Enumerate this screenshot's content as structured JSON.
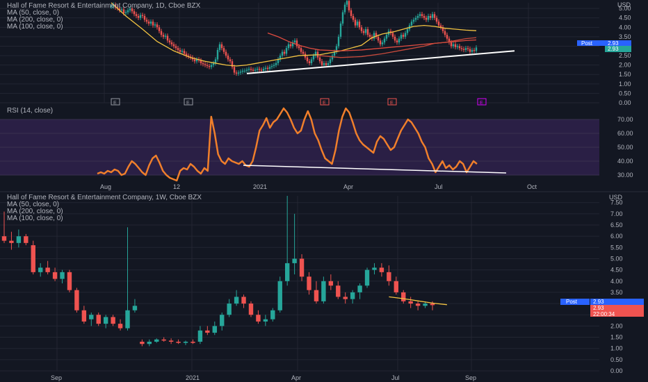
{
  "colors": {
    "background": "#131722",
    "grid": "#232632",
    "text": "#b2b5be",
    "candle_up": "#26a69a",
    "candle_down": "#ef5350",
    "ma50": "#f5c542",
    "ma200": "#e04b3f",
    "ma100": "#c94a3c",
    "rsi_line": "#f07f2b",
    "rsi_band": "#2a1f45",
    "trendline": "#ffffff",
    "post_badge": "#2962ff",
    "last_price_badge": "#26a69a",
    "last_price_badge_down": "#ef5350"
  },
  "daily_panel": {
    "legend": [
      "Hall of Fame Resort & Entertainment Company, 1D, Cboe BZX",
      "MA (50, close, 0)",
      "MA (200, close, 0)",
      "MA (100, close, 0)"
    ],
    "currency": "USD",
    "post_label": "Post",
    "price_labels": [
      "2.93",
      "2.93"
    ],
    "event_markers": [
      "E",
      "E",
      "E",
      "E",
      "E"
    ]
  },
  "rsi_panel": {
    "legend": "RSI (14, close)",
    "x_labels": [
      "Aug",
      "12",
      "2021",
      "Apr",
      "Jul",
      "Oct"
    ]
  },
  "weekly_panel": {
    "legend": [
      "Hall of Fame Resort & Entertainment Company, 1W, Cboe BZX",
      "MA (50, close, 0)",
      "MA (200, close, 0)",
      "MA (100, close, 0)"
    ],
    "currency": "USD",
    "post_label": "Post",
    "price_labels": [
      "2.93",
      "2.93",
      "22:00:34"
    ],
    "x_labels": [
      "Sep",
      "2021",
      "Apr",
      "Jul",
      "Sep"
    ]
  },
  "chart_data": [
    {
      "type": "candlestick",
      "timeframe": "1D",
      "y_ticks": [
        "5.00",
        "4.50",
        "4.00",
        "3.50",
        "3.00",
        "2.50",
        "2.00",
        "1.50",
        "1.00",
        "0.50",
        "0.00"
      ],
      "ylim": [
        0,
        5.3
      ],
      "closes": [
        5.1,
        5.2,
        5.05,
        5.0,
        4.9,
        4.95,
        4.75,
        4.8,
        4.9,
        5.0,
        4.85,
        4.7,
        4.6,
        4.5,
        4.65,
        4.6,
        4.4,
        4.3,
        4.2,
        4.3,
        4.1,
        4.15,
        4.0,
        3.8,
        3.6,
        3.5,
        3.55,
        3.3,
        3.2,
        3.1,
        3.0,
        2.9,
        2.8,
        2.7,
        2.75,
        2.6,
        2.5,
        2.45,
        2.4,
        2.3,
        2.2,
        2.3,
        2.25,
        2.1,
        2.05,
        2.0,
        1.95,
        1.9,
        2.0,
        2.1,
        2.3,
        2.8,
        3.1,
        2.9,
        2.7,
        2.5,
        2.3,
        2.2,
        1.9,
        1.6,
        1.55,
        1.6,
        1.65,
        1.7,
        1.7,
        1.75,
        1.8,
        1.75,
        1.7,
        1.75,
        1.8,
        1.75,
        1.7,
        1.8,
        1.85,
        1.8,
        1.9,
        1.95,
        2.0,
        2.1,
        2.3,
        2.5,
        2.7,
        2.6,
        2.9,
        3.1,
        3.0,
        3.2,
        3.3,
        3.0,
        2.9,
        2.7,
        2.6,
        2.4,
        2.2,
        2.1,
        2.3,
        2.5,
        2.7,
        2.4,
        2.2,
        2.0,
        2.1,
        2.0,
        2.1,
        2.3,
        2.5,
        2.7,
        3.0,
        3.5,
        4.2,
        4.8,
        5.2,
        5.4,
        4.9,
        4.6,
        4.4,
        4.1,
        4.3,
        4.0,
        3.8,
        3.7,
        3.9,
        3.6,
        3.5,
        3.4,
        3.7,
        3.5,
        3.3,
        3.1,
        3.2,
        3.4,
        3.6,
        3.8,
        3.7,
        3.5,
        3.3,
        3.2,
        3.4,
        3.6,
        3.5,
        3.7,
        3.9,
        4.1,
        4.3,
        4.4,
        4.5,
        4.6,
        4.7,
        4.6,
        4.5,
        4.4,
        4.6,
        4.5,
        4.7,
        4.5,
        4.3,
        4.1,
        4.0,
        3.8,
        3.6,
        3.4,
        3.2,
        3.0,
        3.1,
        2.95,
        3.0,
        2.9,
        2.85,
        2.8,
        2.9,
        2.85,
        2.7,
        2.8,
        2.75,
        2.93
      ],
      "series": [
        {
          "name": "MA (50, close, 0)",
          "points": [
            [
              0.3,
              5.3
            ],
            [
              0.37,
              4.6
            ],
            [
              0.45,
              3.9
            ],
            [
              0.52,
              3.25
            ],
            [
              0.6,
              2.75
            ],
            [
              0.68,
              2.4
            ],
            [
              0.75,
              2.2
            ],
            [
              0.8,
              2.1
            ],
            [
              0.85,
              2.0
            ],
            [
              0.9,
              1.95
            ],
            [
              0.95,
              2.0
            ],
            [
              1.0,
              2.1
            ],
            [
              1.05,
              2.2
            ],
            [
              1.1,
              2.3
            ],
            [
              1.15,
              2.4
            ],
            [
              1.2,
              2.5
            ],
            [
              1.3,
              2.55
            ],
            [
              1.4,
              2.75
            ],
            [
              1.5,
              3.05
            ],
            [
              1.55,
              3.45
            ],
            [
              1.6,
              3.65
            ],
            [
              1.65,
              3.75
            ],
            [
              1.7,
              3.9
            ],
            [
              1.75,
              4.05
            ],
            [
              1.8,
              4.1
            ],
            [
              1.85,
              4.05
            ],
            [
              1.9,
              3.95
            ],
            [
              1.95,
              3.9
            ],
            [
              2.0,
              3.85
            ],
            [
              2.05,
              3.82
            ]
          ]
        },
        {
          "name": "MA (200, close, 0)",
          "points": [
            [
              1.05,
              3.7
            ],
            [
              1.1,
              3.5
            ],
            [
              1.15,
              3.25
            ],
            [
              1.2,
              3.05
            ],
            [
              1.25,
              2.9
            ],
            [
              1.3,
              2.8
            ],
            [
              1.4,
              2.75
            ],
            [
              1.5,
              2.8
            ],
            [
              1.6,
              2.9
            ],
            [
              1.7,
              3.0
            ],
            [
              1.8,
              3.1
            ],
            [
              1.9,
              3.2
            ],
            [
              2.0,
              3.3
            ],
            [
              2.05,
              3.33
            ]
          ]
        },
        {
          "name": "MA (100, close, 0)",
          "points": [
            [
              1.3,
              2.5
            ],
            [
              1.4,
              2.4
            ],
            [
              1.5,
              2.45
            ],
            [
              1.6,
              2.6
            ],
            [
              1.7,
              2.8
            ],
            [
              1.8,
              3.0
            ],
            [
              1.85,
              3.15
            ],
            [
              1.9,
              3.2
            ],
            [
              1.95,
              3.3
            ],
            [
              2.0,
              3.4
            ],
            [
              2.05,
              3.45
            ]
          ]
        }
      ],
      "annotations": [
        "Ascending support trendline drawn under the lows"
      ]
    },
    {
      "type": "line",
      "name": "RSI (14, close)",
      "y_ticks": [
        "70.00",
        "60.00",
        "50.00",
        "40.00",
        "30.00"
      ],
      "ylim": [
        25,
        80
      ],
      "band": [
        30,
        70
      ],
      "values": [
        31,
        32,
        31,
        33,
        32,
        34,
        33,
        30,
        31,
        36,
        40,
        38,
        35,
        32,
        30,
        37,
        42,
        44,
        39,
        33,
        30,
        28,
        27,
        26,
        33,
        35,
        34,
        38,
        36,
        33,
        31,
        35,
        33,
        72,
        60,
        45,
        40,
        38,
        42,
        40,
        39,
        38,
        40,
        37,
        36,
        40,
        50,
        62,
        66,
        71,
        64,
        68,
        70,
        74,
        78,
        75,
        70,
        64,
        60,
        62,
        70,
        76,
        70,
        60,
        55,
        48,
        42,
        40,
        38,
        48,
        62,
        72,
        78,
        75,
        68,
        60,
        55,
        52,
        50,
        48,
        46,
        54,
        58,
        56,
        52,
        48,
        50,
        56,
        62,
        66,
        70,
        68,
        64,
        60,
        54,
        50,
        42,
        38,
        32,
        36,
        40,
        35,
        37,
        34,
        36,
        40,
        38,
        32,
        36,
        40,
        38
      ],
      "annotations": [
        "Descending trendline under RSI lows"
      ]
    },
    {
      "type": "candlestick",
      "timeframe": "1W",
      "y_ticks": [
        "7.50",
        "7.00",
        "6.50",
        "6.00",
        "5.50",
        "5.00",
        "4.50",
        "4.00",
        "3.50",
        "3.00",
        "2.50",
        "2.00",
        "1.50",
        "1.00",
        "0.50",
        "0.00"
      ],
      "ylim": [
        0,
        7.8
      ],
      "candles": [
        {
          "o": 6.0,
          "h": 7.1,
          "l": 5.7,
          "c": 5.8
        },
        {
          "o": 5.8,
          "h": 6.2,
          "l": 5.4,
          "c": 5.7
        },
        {
          "o": 5.7,
          "h": 6.3,
          "l": 5.5,
          "c": 6.0
        },
        {
          "o": 6.0,
          "h": 6.1,
          "l": 5.6,
          "c": 5.7
        },
        {
          "o": 5.6,
          "h": 5.8,
          "l": 4.3,
          "c": 4.4
        },
        {
          "o": 4.4,
          "h": 4.8,
          "l": 4.2,
          "c": 4.6
        },
        {
          "o": 4.6,
          "h": 4.9,
          "l": 4.3,
          "c": 4.4
        },
        {
          "o": 4.4,
          "h": 4.6,
          "l": 4.0,
          "c": 4.1
        },
        {
          "o": 4.1,
          "h": 4.5,
          "l": 3.9,
          "c": 4.4
        },
        {
          "o": 4.4,
          "h": 4.5,
          "l": 3.5,
          "c": 3.6
        },
        {
          "o": 3.6,
          "h": 3.7,
          "l": 2.6,
          "c": 2.7
        },
        {
          "o": 2.7,
          "h": 2.9,
          "l": 2.1,
          "c": 2.2
        },
        {
          "o": 2.3,
          "h": 2.6,
          "l": 2.0,
          "c": 2.5
        },
        {
          "o": 2.5,
          "h": 2.6,
          "l": 2.0,
          "c": 2.1
        },
        {
          "o": 2.1,
          "h": 2.5,
          "l": 1.9,
          "c": 2.4
        },
        {
          "o": 2.4,
          "h": 2.5,
          "l": 2.0,
          "c": 2.1
        },
        {
          "o": 2.1,
          "h": 2.3,
          "l": 1.8,
          "c": 1.9
        },
        {
          "o": 1.9,
          "h": 6.4,
          "l": 1.8,
          "c": 2.7
        },
        {
          "o": 2.7,
          "h": 3.2,
          "l": 2.6,
          "c": 2.9
        },
        {
          "o": 1.3,
          "h": 1.4,
          "l": 1.1,
          "c": 1.2
        },
        {
          "o": 1.2,
          "h": 1.4,
          "l": 1.1,
          "c": 1.3
        },
        {
          "o": 1.3,
          "h": 1.45,
          "l": 1.25,
          "c": 1.4
        },
        {
          "o": 1.4,
          "h": 1.5,
          "l": 1.3,
          "c": 1.35
        },
        {
          "o": 1.35,
          "h": 1.45,
          "l": 1.2,
          "c": 1.3
        },
        {
          "o": 1.3,
          "h": 1.4,
          "l": 1.2,
          "c": 1.25
        },
        {
          "o": 1.25,
          "h": 1.35,
          "l": 1.15,
          "c": 1.3
        },
        {
          "o": 1.3,
          "h": 1.4,
          "l": 1.2,
          "c": 1.25
        },
        {
          "o": 1.3,
          "h": 2.0,
          "l": 1.2,
          "c": 1.8
        },
        {
          "o": 1.8,
          "h": 2.0,
          "l": 1.6,
          "c": 1.7
        },
        {
          "o": 1.7,
          "h": 2.2,
          "l": 1.6,
          "c": 2.0
        },
        {
          "o": 2.0,
          "h": 2.6,
          "l": 1.8,
          "c": 2.5
        },
        {
          "o": 2.5,
          "h": 3.2,
          "l": 2.4,
          "c": 3.0
        },
        {
          "o": 3.0,
          "h": 3.6,
          "l": 2.9,
          "c": 3.3
        },
        {
          "o": 3.3,
          "h": 3.4,
          "l": 2.8,
          "c": 3.0
        },
        {
          "o": 3.0,
          "h": 3.1,
          "l": 2.4,
          "c": 2.5
        },
        {
          "o": 2.5,
          "h": 2.7,
          "l": 2.1,
          "c": 2.2
        },
        {
          "o": 2.2,
          "h": 2.5,
          "l": 2.0,
          "c": 2.3
        },
        {
          "o": 2.3,
          "h": 2.8,
          "l": 2.2,
          "c": 2.7
        },
        {
          "o": 2.7,
          "h": 4.2,
          "l": 2.6,
          "c": 4.0
        },
        {
          "o": 4.0,
          "h": 7.8,
          "l": 3.8,
          "c": 4.8
        },
        {
          "o": 4.8,
          "h": 7.0,
          "l": 4.3,
          "c": 5.0
        },
        {
          "o": 5.0,
          "h": 5.2,
          "l": 4.0,
          "c": 4.2
        },
        {
          "o": 4.2,
          "h": 4.4,
          "l": 3.4,
          "c": 3.6
        },
        {
          "o": 3.6,
          "h": 4.0,
          "l": 3.0,
          "c": 3.1
        },
        {
          "o": 3.1,
          "h": 4.2,
          "l": 3.0,
          "c": 4.0
        },
        {
          "o": 4.0,
          "h": 4.3,
          "l": 3.6,
          "c": 3.8
        },
        {
          "o": 3.8,
          "h": 4.0,
          "l": 3.2,
          "c": 3.3
        },
        {
          "o": 3.3,
          "h": 3.5,
          "l": 3.0,
          "c": 3.2
        },
        {
          "o": 3.2,
          "h": 3.6,
          "l": 3.0,
          "c": 3.5
        },
        {
          "o": 3.5,
          "h": 3.9,
          "l": 3.2,
          "c": 3.8
        },
        {
          "o": 3.8,
          "h": 4.6,
          "l": 3.7,
          "c": 4.5
        },
        {
          "o": 4.5,
          "h": 4.8,
          "l": 4.3,
          "c": 4.6
        },
        {
          "o": 4.6,
          "h": 4.8,
          "l": 4.2,
          "c": 4.4
        },
        {
          "o": 4.4,
          "h": 4.7,
          "l": 3.8,
          "c": 4.0
        },
        {
          "o": 4.0,
          "h": 4.2,
          "l": 3.4,
          "c": 3.5
        },
        {
          "o": 3.5,
          "h": 3.6,
          "l": 3.0,
          "c": 3.1
        },
        {
          "o": 3.1,
          "h": 3.3,
          "l": 2.8,
          "c": 3.0
        },
        {
          "o": 3.0,
          "h": 3.1,
          "l": 2.7,
          "c": 2.9
        },
        {
          "o": 2.9,
          "h": 3.1,
          "l": 2.8,
          "c": 3.0
        },
        {
          "o": 3.0,
          "h": 3.1,
          "l": 2.7,
          "c": 2.93
        }
      ],
      "ma_points": [
        [
          53,
          3.3
        ],
        [
          55,
          3.22
        ],
        [
          57,
          3.12
        ],
        [
          59,
          3.02
        ],
        [
          61,
          2.95
        ]
      ],
      "ma_name": "MA (50, close, 0)"
    }
  ]
}
